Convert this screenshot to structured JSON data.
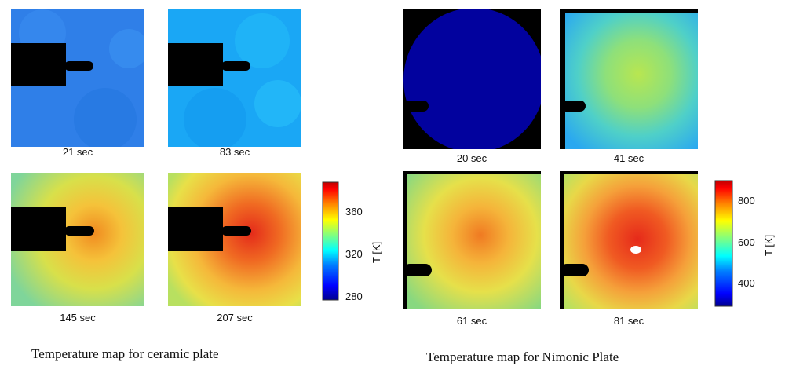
{
  "ceramic": {
    "caption": "Temperature map for ceramic plate",
    "unit_label": "T [K]",
    "colorbar_ticks": [
      "360",
      "320",
      "280"
    ],
    "colorbar_range": [
      272,
      388
    ],
    "maps": [
      {
        "time": "21 sec",
        "level": 0.33
      },
      {
        "time": "83 sec",
        "level": 0.4
      },
      {
        "time": "145 sec",
        "level": 0.7
      },
      {
        "time": "207 sec",
        "level": 0.8
      }
    ]
  },
  "nimonic": {
    "caption": "Temperature map for Nimonic Plate",
    "unit_label": "T [K]",
    "colorbar_ticks": [
      "800",
      "600",
      "400"
    ],
    "colorbar_range": [
      280,
      880
    ],
    "maps": [
      {
        "time": "20 sec",
        "level": 0.05
      },
      {
        "time": "41 sec",
        "level": 0.48
      },
      {
        "time": "61 sec",
        "level": 0.68
      },
      {
        "time": "81 sec",
        "level": 0.78
      }
    ]
  },
  "colors": {
    "jet": [
      "#00008f",
      "#0000ff",
      "#0080ff",
      "#00ffff",
      "#80ff80",
      "#ffff00",
      "#ff8000",
      "#ff0000",
      "#800000"
    ]
  }
}
